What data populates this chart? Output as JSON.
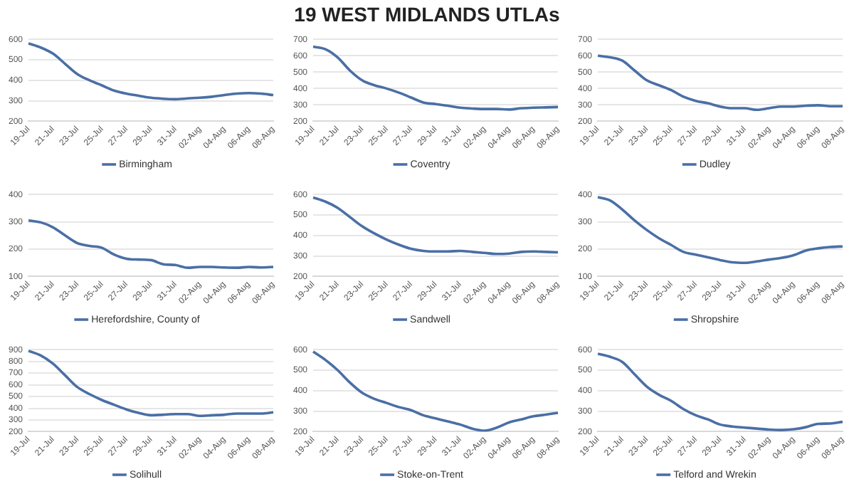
{
  "chart_data": [
    {
      "type": "line",
      "categories": [
        "19-Jul",
        null,
        "21-Jul",
        null,
        "23-Jul",
        null,
        "25-Jul",
        null,
        "27-Jul",
        null,
        "29-Jul",
        null,
        "31-Jul",
        null,
        "02-Aug",
        null,
        "04-Aug",
        null,
        "06-Aug",
        null,
        "08-Aug"
      ],
      "series": [
        {
          "name": "Birmingham",
          "color": "#4a6fa5",
          "values": [
            580,
            560,
            530,
            480,
            430,
            400,
            375,
            350,
            335,
            325,
            315,
            310,
            308,
            312,
            315,
            320,
            328,
            335,
            338,
            335,
            328
          ]
        }
      ],
      "ylim": [
        200,
        600
      ],
      "yticks": [
        200,
        300,
        400,
        500,
        600
      ],
      "grid": "y",
      "legend": "bottom"
    },
    {
      "type": "line",
      "title": "19 WEST MIDLANDS UTLAs",
      "categories": [
        "19-Jul",
        null,
        "21-Jul",
        null,
        "23-Jul",
        null,
        "25-Jul",
        null,
        "27-Jul",
        null,
        "29-Jul",
        null,
        "31-Jul",
        null,
        "02-Aug",
        null,
        "04-Aug",
        null,
        "06-Aug",
        null,
        "08-Aug"
      ],
      "series": [
        {
          "name": "Coventry",
          "color": "#4a6fa5",
          "values": [
            655,
            640,
            590,
            510,
            450,
            420,
            400,
            375,
            345,
            315,
            305,
            295,
            283,
            278,
            275,
            275,
            272,
            280,
            283,
            285,
            287
          ]
        }
      ],
      "ylim": [
        200,
        700
      ],
      "yticks": [
        200,
        300,
        400,
        500,
        600,
        700
      ],
      "grid": "y",
      "legend": "bottom"
    },
    {
      "type": "line",
      "categories": [
        "19-Jul",
        null,
        "21-Jul",
        null,
        "23-Jul",
        null,
        "25-Jul",
        null,
        "27-Jul",
        null,
        "29-Jul",
        null,
        "31-Jul",
        null,
        "02-Aug",
        null,
        "04-Aug",
        null,
        "06-Aug",
        null,
        "08-Aug"
      ],
      "series": [
        {
          "name": "Dudley",
          "color": "#4a6fa5",
          "values": [
            600,
            590,
            570,
            510,
            450,
            420,
            390,
            350,
            325,
            310,
            290,
            280,
            280,
            270,
            280,
            290,
            290,
            295,
            298,
            292,
            292
          ]
        }
      ],
      "ylim": [
        200,
        700
      ],
      "yticks": [
        200,
        300,
        400,
        500,
        600,
        700
      ],
      "grid": "y",
      "legend": "bottom"
    },
    {
      "type": "line",
      "categories": [
        "19-Jul",
        null,
        "21-Jul",
        null,
        "23-Jul",
        null,
        "25-Jul",
        null,
        "27-Jul",
        null,
        "29-Jul",
        null,
        "31-Jul",
        null,
        "02-Aug",
        null,
        "04-Aug",
        null,
        "06-Aug",
        null,
        "08-Aug"
      ],
      "series": [
        {
          "name": "Herefordshire, County of",
          "color": "#4a6fa5",
          "values": [
            305,
            298,
            280,
            250,
            222,
            212,
            205,
            180,
            165,
            162,
            160,
            145,
            142,
            132,
            135,
            135,
            133,
            132,
            135,
            133,
            135
          ]
        }
      ],
      "ylim": [
        100,
        400
      ],
      "yticks": [
        100,
        200,
        300,
        400
      ],
      "grid": "y",
      "legend": "bottom"
    },
    {
      "type": "line",
      "categories": [
        "19-Jul",
        null,
        "21-Jul",
        null,
        "23-Jul",
        null,
        "25-Jul",
        null,
        "27-Jul",
        null,
        "29-Jul",
        null,
        "31-Jul",
        null,
        "02-Aug",
        null,
        "04-Aug",
        null,
        "06-Aug",
        null,
        "08-Aug"
      ],
      "series": [
        {
          "name": "Sandwell",
          "color": "#4a6fa5",
          "values": [
            585,
            565,
            535,
            490,
            445,
            410,
            380,
            355,
            335,
            325,
            322,
            322,
            325,
            320,
            315,
            310,
            312,
            320,
            322,
            320,
            318
          ]
        }
      ],
      "ylim": [
        200,
        600
      ],
      "yticks": [
        200,
        300,
        400,
        500,
        600
      ],
      "grid": "y",
      "legend": "bottom"
    },
    {
      "type": "line",
      "categories": [
        "19-Jul",
        null,
        "21-Jul",
        null,
        "23-Jul",
        null,
        "25-Jul",
        null,
        "27-Jul",
        null,
        "29-Jul",
        null,
        "31-Jul",
        null,
        "02-Aug",
        null,
        "04-Aug",
        null,
        "06-Aug",
        null,
        "08-Aug"
      ],
      "series": [
        {
          "name": "Shropshire",
          "color": "#4a6fa5",
          "values": [
            390,
            378,
            345,
            305,
            270,
            240,
            215,
            190,
            180,
            170,
            160,
            152,
            150,
            155,
            162,
            168,
            178,
            195,
            203,
            208,
            210
          ]
        }
      ],
      "ylim": [
        100,
        400
      ],
      "yticks": [
        100,
        200,
        300,
        400
      ],
      "grid": "y",
      "legend": "bottom"
    },
    {
      "type": "line",
      "categories": [
        "19-Jul",
        null,
        "21-Jul",
        null,
        "23-Jul",
        null,
        "25-Jul",
        null,
        "27-Jul",
        null,
        "29-Jul",
        null,
        "31-Jul",
        null,
        "02-Aug",
        null,
        "04-Aug",
        null,
        "06-Aug",
        null,
        "08-Aug"
      ],
      "series": [
        {
          "name": "Solihull",
          "color": "#4a6fa5",
          "values": [
            890,
            850,
            780,
            680,
            580,
            520,
            470,
            430,
            390,
            360,
            340,
            345,
            350,
            350,
            335,
            340,
            345,
            355,
            355,
            355,
            365
          ]
        }
      ],
      "ylim": [
        200,
        900
      ],
      "yticks": [
        200,
        300,
        400,
        500,
        600,
        700,
        800,
        900
      ],
      "grid": "y",
      "legend": "bottom"
    },
    {
      "type": "line",
      "categories": [
        "19-Jul",
        null,
        "21-Jul",
        null,
        "23-Jul",
        null,
        "25-Jul",
        null,
        "27-Jul",
        null,
        "29-Jul",
        null,
        "31-Jul",
        null,
        "02-Aug",
        null,
        "04-Aug",
        null,
        "06-Aug",
        null,
        "08-Aug"
      ],
      "series": [
        {
          "name": "Stoke-on-Trent",
          "color": "#4a6fa5",
          "values": [
            590,
            550,
            500,
            440,
            390,
            360,
            340,
            320,
            305,
            280,
            265,
            250,
            235,
            215,
            205,
            220,
            245,
            260,
            275,
            283,
            292
          ]
        }
      ],
      "ylim": [
        200,
        600
      ],
      "yticks": [
        200,
        300,
        400,
        500,
        600
      ],
      "grid": "y",
      "legend": "bottom"
    },
    {
      "type": "line",
      "categories": [
        "19-Jul",
        null,
        "21-Jul",
        null,
        "23-Jul",
        null,
        "25-Jul",
        null,
        "27-Jul",
        null,
        "29-Jul",
        null,
        "31-Jul",
        null,
        "02-Aug",
        null,
        "04-Aug",
        null,
        "06-Aug",
        null,
        "08-Aug"
      ],
      "series": [
        {
          "name": "Telford and Wrekin",
          "color": "#4a6fa5",
          "values": [
            580,
            565,
            540,
            480,
            420,
            380,
            350,
            310,
            280,
            260,
            235,
            225,
            220,
            215,
            210,
            208,
            212,
            222,
            238,
            240,
            248
          ]
        }
      ],
      "ylim": [
        200,
        600
      ],
      "yticks": [
        200,
        300,
        400,
        500,
        600
      ],
      "grid": "y",
      "legend": "bottom"
    }
  ]
}
